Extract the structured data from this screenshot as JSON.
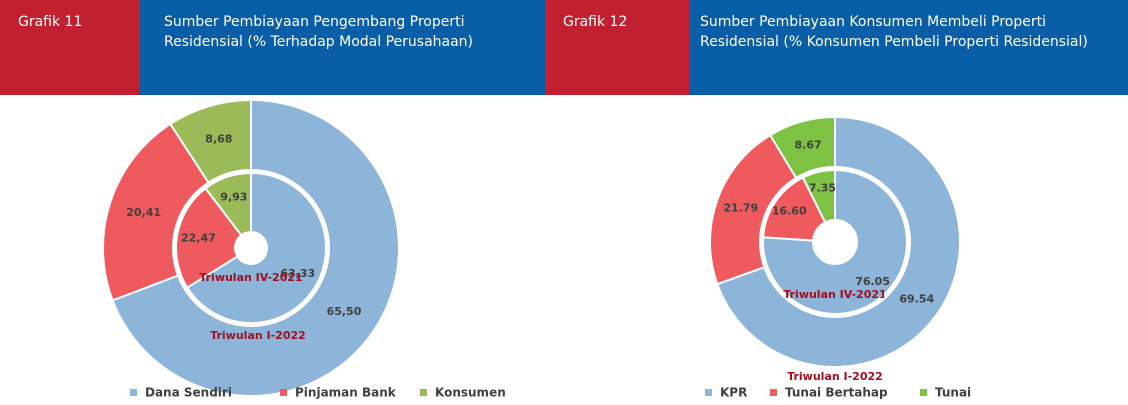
{
  "chart_data": [
    {
      "type": "donut",
      "label": "Grafik 11",
      "title": "Sumber Pembiayaan Pengembang Properti Residensial (% Terhadap Modal Perusahaan)",
      "categories": [
        "Dana Sendiri",
        "Pinjaman Bank",
        "Konsumen"
      ],
      "colors": [
        "#8db4d9",
        "#ef5a5f",
        "#9bbb59"
      ],
      "series": [
        {
          "name": "Triwulan IV-2021",
          "values": [
            63.33,
            22.47,
            9.93
          ],
          "value_labels": [
            "63,33",
            "22,47",
            "9,93"
          ]
        },
        {
          "name": "Triwulan I-2022",
          "values": [
            65.5,
            20.41,
            8.68
          ],
          "value_labels": [
            "65,50",
            "20,41",
            "8,68"
          ]
        }
      ]
    },
    {
      "type": "donut",
      "label": "Grafik 12",
      "title": "Sumber Pembiayaan Konsumen Membeli Properti Residensial (% Konsumen Pembeli Properti Residensial)",
      "categories": [
        "KPR",
        "Tunai Bertahap",
        "Tunai"
      ],
      "colors": [
        "#8db4d9",
        "#ef5a5f",
        "#7dc242"
      ],
      "series": [
        {
          "name": "Triwulan IV-2021",
          "values": [
            76.05,
            16.6,
            7.35
          ],
          "value_labels": [
            "76.05",
            "16.60",
            "7.35"
          ]
        },
        {
          "name": "Triwulan I-2022",
          "values": [
            69.54,
            21.79,
            8.67
          ],
          "value_labels": [
            "69.54",
            "21.79",
            "8.67"
          ]
        }
      ]
    }
  ]
}
